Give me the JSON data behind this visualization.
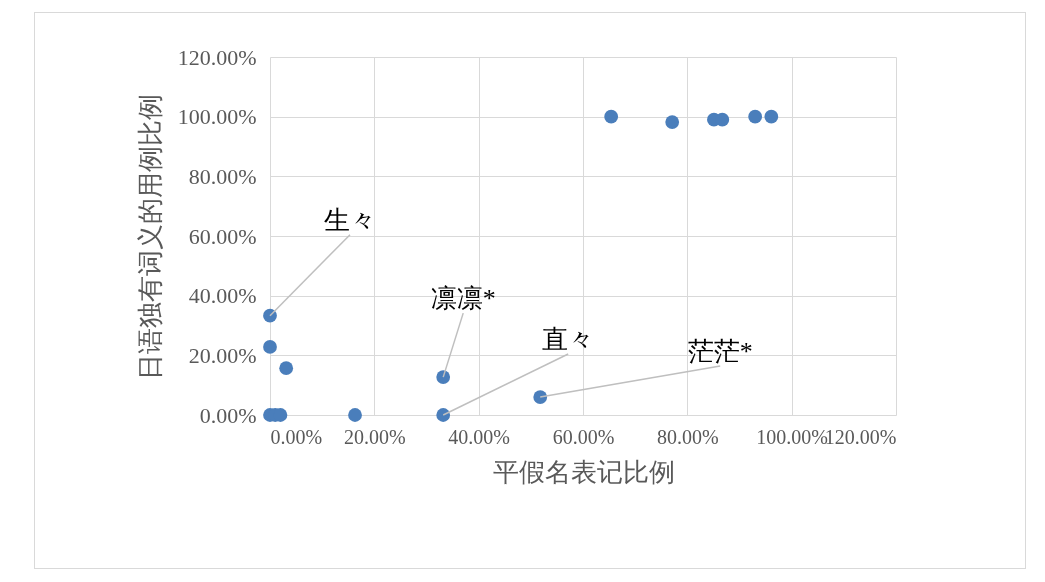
{
  "chart_data": {
    "type": "scatter",
    "xlabel": "平假名表记比例",
    "ylabel": "日语独有词义的用例比例",
    "x": [
      0,
      0,
      0.031,
      0,
      0.01,
      0.02,
      0.163,
      0.332,
      0.332,
      0.518,
      0.654,
      0.771,
      0.851,
      0.867,
      0.93,
      0.961
    ],
    "series": [
      {
        "color": "#4a7ebb",
        "values": [
          0.333,
          0.228,
          0.157,
          0,
          0,
          0,
          0,
          0.127,
          0,
          0.06,
          1.0,
          0.982,
          0.99,
          0.99,
          1.0,
          1.0
        ]
      }
    ],
    "xlim": [
      0,
      1.2
    ],
    "xticks": [
      {
        "value": 0,
        "label": "0.00%"
      },
      {
        "value": 0.2,
        "label": "20.00%"
      },
      {
        "value": 0.4,
        "label": "40.00%"
      },
      {
        "value": 0.6,
        "label": "60.00%"
      },
      {
        "value": 0.8,
        "label": "80.00%"
      },
      {
        "value": 1.0,
        "label": "100.00%"
      },
      {
        "value": 1.2,
        "label": "120.00%"
      }
    ],
    "ylim": [
      0,
      1.2
    ],
    "yticks": [
      {
        "value": 0,
        "label": "0.00%"
      },
      {
        "value": 0.2,
        "label": "20.00%"
      },
      {
        "value": 0.4,
        "label": "40.00%"
      },
      {
        "value": 0.6,
        "label": "60.00%"
      },
      {
        "value": 0.8,
        "label": "80.00%"
      },
      {
        "value": 1.0,
        "label": "100.00%"
      },
      {
        "value": 1.2,
        "label": "120.00%"
      }
    ],
    "grid": true,
    "marker": "circle",
    "legend": false,
    "annotations": [
      {
        "text": "生々",
        "x": 0,
        "y": 0.333
      },
      {
        "text": "凛凛*",
        "x": 0.332,
        "y": 0.127
      },
      {
        "text": "直々",
        "x": 0.332,
        "y": 0
      },
      {
        "text": "茫茫*",
        "x": 0.518,
        "y": 0.06
      }
    ]
  }
}
